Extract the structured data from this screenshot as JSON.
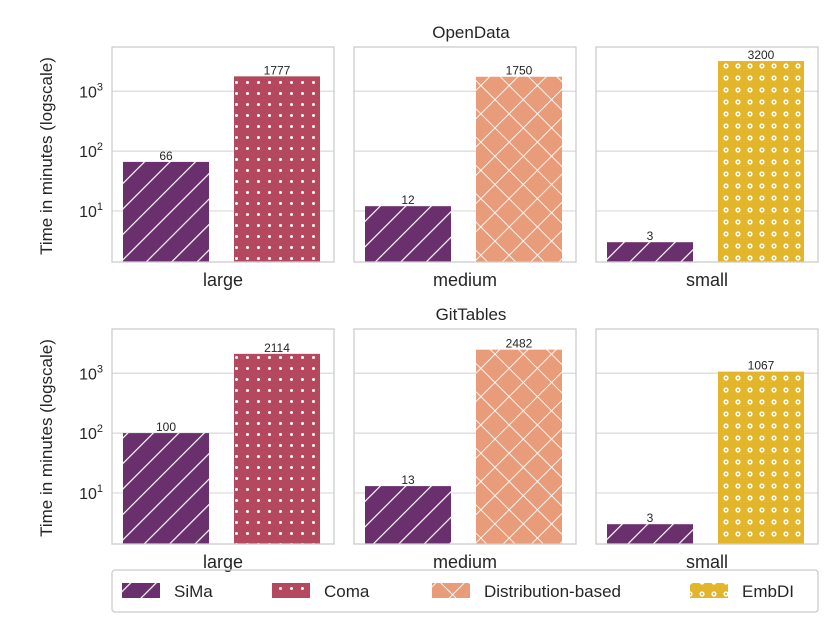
{
  "chart_data": {
    "type": "bar",
    "scale": "log",
    "ylabel": "Time in minutes (logscale)",
    "y_ticks": [
      {
        "value": 10,
        "base": "10",
        "exp": "1"
      },
      {
        "value": 100,
        "base": "10",
        "exp": "2"
      },
      {
        "value": 1000,
        "base": "10",
        "exp": "3"
      }
    ],
    "ylim": [
      1.4,
      5500
    ],
    "legend": {
      "position": "bottom",
      "entries": [
        {
          "name": "SiMa",
          "color": "#6a2f6d",
          "pattern": "hatch"
        },
        {
          "name": "Coma",
          "color": "#b3485e",
          "pattern": "dots"
        },
        {
          "name": "Distribution-based",
          "color": "#e89c79",
          "pattern": "cross"
        },
        {
          "name": "EmbDI",
          "color": "#e3b52a",
          "pattern": "rings"
        }
      ]
    },
    "rows": [
      {
        "title": "OpenData",
        "panels": [
          {
            "category": "large",
            "bars": [
              {
                "method": "SiMa",
                "value": 66,
                "label": "66"
              },
              {
                "method": "Coma",
                "value": 1777,
                "label": "1777"
              }
            ]
          },
          {
            "category": "medium",
            "bars": [
              {
                "method": "SiMa",
                "value": 12,
                "label": "12"
              },
              {
                "method": "Distribution-based",
                "value": 1750,
                "label": "1750"
              }
            ]
          },
          {
            "category": "small",
            "bars": [
              {
                "method": "SiMa",
                "value": 3,
                "label": "3"
              },
              {
                "method": "EmbDI",
                "value": 3200,
                "label": "3200"
              }
            ]
          }
        ]
      },
      {
        "title": "GitTables",
        "panels": [
          {
            "category": "large",
            "bars": [
              {
                "method": "SiMa",
                "value": 100,
                "label": "100"
              },
              {
                "method": "Coma",
                "value": 2114,
                "label": "2114"
              }
            ]
          },
          {
            "category": "medium",
            "bars": [
              {
                "method": "SiMa",
                "value": 13,
                "label": "13"
              },
              {
                "method": "Distribution-based",
                "value": 2482,
                "label": "2482"
              }
            ]
          },
          {
            "category": "small",
            "bars": [
              {
                "method": "SiMa",
                "value": 3,
                "label": "3"
              },
              {
                "method": "EmbDI",
                "value": 1067,
                "label": "1067"
              }
            ]
          }
        ]
      }
    ]
  }
}
